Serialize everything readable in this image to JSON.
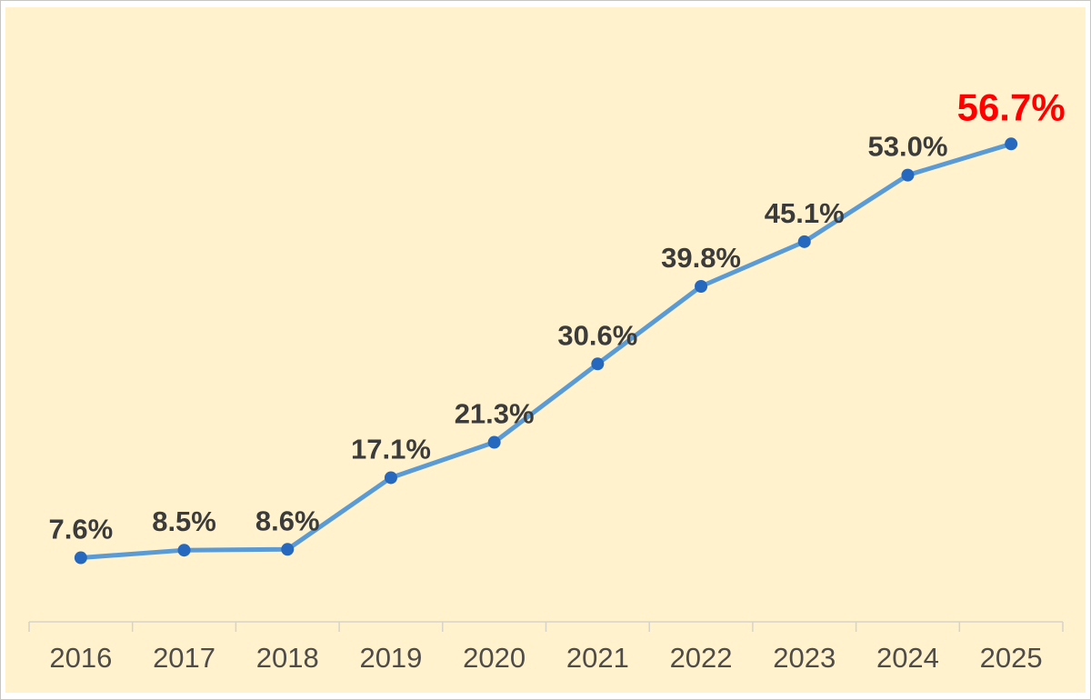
{
  "chart_data": {
    "type": "line",
    "categories": [
      "2016",
      "2017",
      "2018",
      "2019",
      "2020",
      "2021",
      "2022",
      "2023",
      "2024",
      "2025"
    ],
    "values": [
      7.6,
      8.5,
      8.6,
      17.1,
      21.3,
      30.6,
      39.8,
      45.1,
      53.0,
      56.7
    ],
    "data_labels": [
      "7.6%",
      "8.5%",
      "8.6%",
      "17.1%",
      "21.3%",
      "30.6%",
      "39.8%",
      "45.1%",
      "53.0%",
      "56.7%"
    ],
    "title": "",
    "xlabel": "",
    "ylabel": "",
    "ylim": [
      0,
      70
    ],
    "grid": false,
    "legend": "none",
    "highlight_last_point": true,
    "colors": {
      "plot_background": "#FFF2CC",
      "frame_background": "#FFFFFF",
      "frame_border": "#C8C6C2",
      "line": "#5B9BD5",
      "marker": "#2668BD",
      "data_label": "#3B3B3B",
      "highlight_label": "#FF0000",
      "axis_line": "#D6D3CB",
      "tick_label": "#4E4B48"
    }
  }
}
